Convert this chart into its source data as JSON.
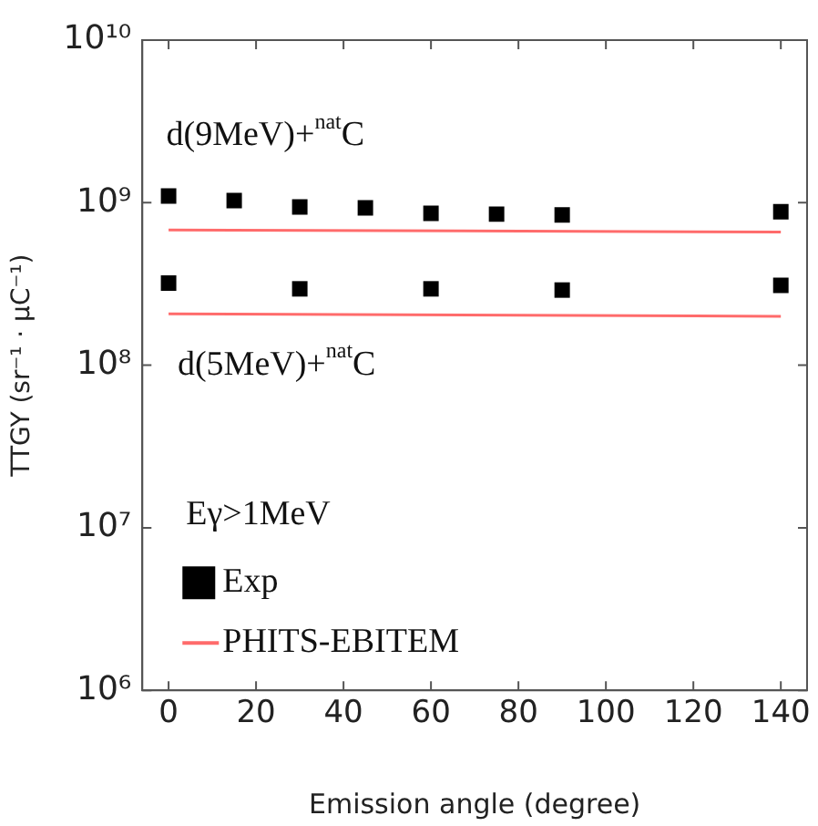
{
  "chart_data": {
    "type": "scatter",
    "xlabel": "Emission angle (degree)",
    "ylabel": "TTGY (sr⁻¹ · μC⁻¹)",
    "legend_title": "Eγ>1MeV",
    "legend": "bottom left",
    "log": "y",
    "grid": false,
    "xlim": [
      -6,
      146
    ],
    "xticks": [
      0,
      20,
      40,
      60,
      80,
      100,
      120,
      140
    ],
    "ylim": [
      1000000,
      10000000000
    ],
    "yticks": [
      {
        "value": 1000000,
        "label": "10⁶"
      },
      {
        "value": 10000000,
        "label": "10⁷"
      },
      {
        "value": 100000000,
        "label": "10⁸"
      },
      {
        "value": 1000000000,
        "label": "10⁹"
      },
      {
        "value": 10000000000,
        "label": "10¹⁰"
      }
    ],
    "annotations": [
      "d(9MeV)+$^{nat}$C",
      "d(5MeV)+$^{nat}$C"
    ],
    "series": [
      {
        "name": "Exp",
        "marker": "square",
        "color": "#000000",
        "x": [
          0,
          15,
          30,
          45,
          60,
          75,
          90,
          140
        ],
        "values": [
          1100000000,
          1030000000,
          940000000,
          930000000,
          860000000,
          850000000,
          840000000,
          880000000
        ]
      },
      {
        "marker": "square",
        "color": "#000000",
        "x": [
          0,
          30,
          60,
          90,
          140
        ],
        "values": [
          320000000,
          295000000,
          295000000,
          290000000,
          310000000
        ]
      },
      {
        "name": "PHITS-EBITEM",
        "type": "line",
        "marker": "none",
        "color": "#ff6b6b",
        "x": [
          0,
          140
        ],
        "values": [
          680000000,
          660000000
        ]
      },
      {
        "type": "line",
        "marker": "none",
        "color": "#ff6b6b",
        "x": [
          0,
          140
        ],
        "values": [
          207000000,
          200000000
        ]
      }
    ]
  }
}
